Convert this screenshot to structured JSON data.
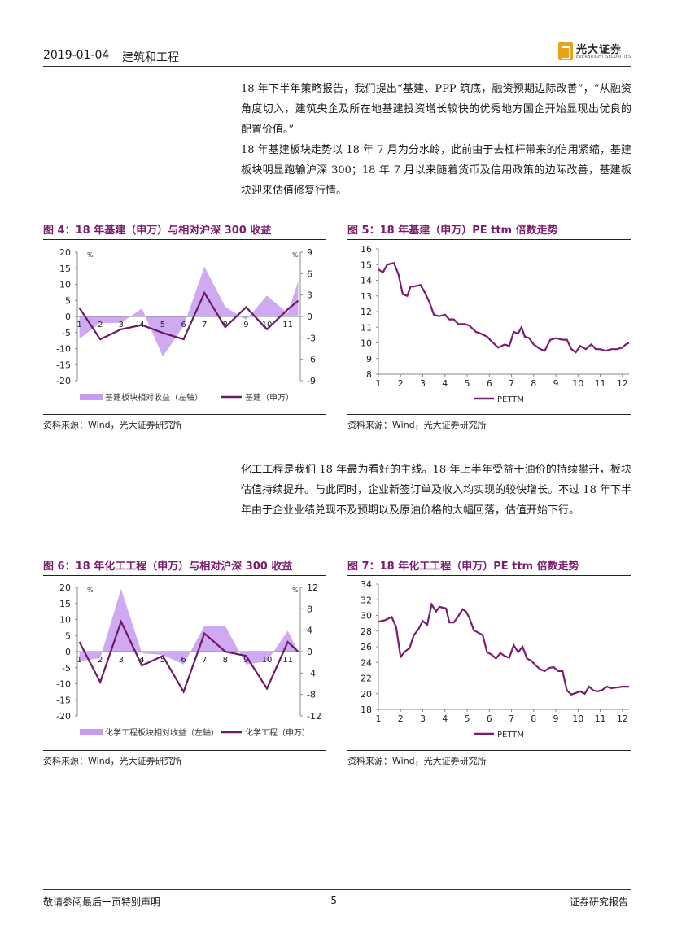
{
  "header": {
    "date": "2019-01-04",
    "title": "建筑和工程",
    "logo_cn": "光大证券",
    "logo_en": "EVERBRIGHT SECURITIES"
  },
  "paragraphs": [
    "18 年下半年策略报告，我们提出“基建、PPP 筑底，融资预期边际改善”，“从融资角度切入，建筑央企及所在地基建投资增长较快的优秀地方国企开始显现出优良的配置价值。”",
    "18 年基建板块走势以 18 年 7 月为分水岭，此前由于去杠杆带来的信用紧缩，基建板块明显跑输沪深 300；18 年 7 月以来随着货币及信用政策的边际改善，基建板块迎来估值修复行情。",
    "化工工程是我们 18 年最为看好的主线。18 年上半年受益于油价的持续攀升，板块估值持续提升。与此同时，企业新签订单及收入均实现的较快增长。不过 18 年下半年由于企业业绩兑现不及预期以及原油价格的大幅回落，估值开始下行。"
  ],
  "figures": {
    "fig4": {
      "title": "图 4：18 年基建（申万）与相对沪深 300 收益",
      "source": "资料来源：Wind，光大证券研究所"
    },
    "fig5": {
      "title": "图 5：18 年基建（申万）PE ttm 倍数走势",
      "source": "资料来源：Wind，光大证券研究所"
    },
    "fig6": {
      "title": "图 6：18 年化工工程（申万）与相对沪深 300 收益",
      "source": "资料来源：Wind，光大证券研究所"
    },
    "fig7": {
      "title": "图 7：18 年化工工程（申万）PE ttm 倍数走势",
      "source": "资料来源：Wind，光大证券研究所"
    }
  },
  "footer": {
    "left": "敬请参阅最后一页特别声明",
    "center": "-5-",
    "right": "证券研究报告"
  },
  "chart_data": [
    {
      "id": "fig4",
      "type": "area+line",
      "title": "图 4：18 年基建（申万）与相对沪深 300 收益",
      "x": [
        "1",
        "2",
        "3",
        "4",
        "5",
        "6",
        "7",
        "8",
        "9",
        "10",
        "11"
      ],
      "y_left_ticks": [
        20,
        15,
        10,
        5,
        0,
        -5,
        -10,
        -15,
        -20
      ],
      "y_right_ticks": [
        9,
        6,
        3,
        0,
        -3,
        -6,
        -9
      ],
      "y_left_unit": "%",
      "y_right_unit": "%",
      "ylim_left": [
        -20,
        20
      ],
      "ylim_right": [
        -9,
        9
      ],
      "series": [
        {
          "name": "基建板块相对收益（左轴）",
          "axis": "left",
          "kind": "area",
          "color": "#c79bf0",
          "x": [
            1,
            2,
            3,
            4,
            5,
            6,
            7,
            8,
            9,
            10,
            11,
            11.5
          ],
          "values": [
            -7,
            -2,
            -2,
            2.5,
            -12.5,
            -3,
            15.5,
            3,
            -1,
            6.5,
            1,
            11
          ]
        },
        {
          "name": "基建（申万）",
          "axis": "right",
          "kind": "line",
          "color": "#6b1a65",
          "x": [
            1,
            2,
            3,
            4,
            5,
            6,
            7,
            8,
            9,
            10,
            11,
            11.5
          ],
          "values": [
            1.2,
            -3.2,
            -1.8,
            -1.2,
            -2.3,
            -3.2,
            3.3,
            -1.5,
            1.3,
            -1.8,
            1,
            2.2
          ]
        }
      ],
      "legend": [
        "基建板块相对收益（左轴）",
        "基建（申万）"
      ]
    },
    {
      "id": "fig5",
      "type": "line",
      "title": "图 5：18 年基建（申万）PE ttm 倍数走势",
      "x_ticks": [
        "1",
        "2",
        "3",
        "4",
        "5",
        "6",
        "7",
        "8",
        "9",
        "10",
        "11",
        "12"
      ],
      "y_ticks": [
        16,
        15,
        14,
        13,
        12,
        11,
        10,
        9,
        8
      ],
      "ylim": [
        8,
        16
      ],
      "xlim": [
        1,
        12.3
      ],
      "series": [
        {
          "name": "PETTM",
          "color": "#7b1c70",
          "x": [
            1,
            1.2,
            1.4,
            1.7,
            1.9,
            2.1,
            2.3,
            2.45,
            2.6,
            2.9,
            3.1,
            3.3,
            3.5,
            3.75,
            4.0,
            4.2,
            4.4,
            4.6,
            4.9,
            5.1,
            5.4,
            5.6,
            5.9,
            6.1,
            6.4,
            6.7,
            6.9,
            7.1,
            7.3,
            7.45,
            7.6,
            7.8,
            8.0,
            8.3,
            8.5,
            8.75,
            9.0,
            9.3,
            9.5,
            9.7,
            9.9,
            10.1,
            10.35,
            10.6,
            10.8,
            11.0,
            11.25,
            11.5,
            11.75,
            12.0,
            12.15,
            12.3
          ],
          "values": [
            14.7,
            14.5,
            15.0,
            15.1,
            14.4,
            13.1,
            13.0,
            13.6,
            13.6,
            13.7,
            13.2,
            12.6,
            11.8,
            11.7,
            11.8,
            11.5,
            11.5,
            11.2,
            11.2,
            11.1,
            10.7,
            10.6,
            10.4,
            10.1,
            9.7,
            9.9,
            9.8,
            10.7,
            10.6,
            11.0,
            10.4,
            10.3,
            9.9,
            9.6,
            9.5,
            10.2,
            10.3,
            10.2,
            10.2,
            9.6,
            9.4,
            9.8,
            9.6,
            9.9,
            9.6,
            9.6,
            9.5,
            9.6,
            9.6,
            9.7,
            9.9,
            10.0
          ]
        }
      ],
      "legend": [
        "PETTM"
      ]
    },
    {
      "id": "fig6",
      "type": "area+line",
      "title": "图 6：18 年化工工程（申万）与相对沪深 300 收益",
      "x": [
        "1",
        "2",
        "3",
        "4",
        "5",
        "6",
        "7",
        "8",
        "9",
        "10",
        "11"
      ],
      "y_left_ticks": [
        20,
        15,
        10,
        5,
        0,
        -5,
        -10,
        -15,
        -20
      ],
      "y_right_ticks": [
        12,
        8,
        4,
        0,
        -4,
        -8,
        -12
      ],
      "y_left_unit": "%",
      "y_right_unit": "%",
      "ylim_left": [
        -20,
        20
      ],
      "ylim_right": [
        -12,
        12
      ],
      "series": [
        {
          "name": "化学工程板块相对收益（左轴）",
          "axis": "left",
          "kind": "area",
          "color": "#c79bf0",
          "x": [
            1,
            2,
            3,
            4,
            5,
            6,
            7,
            8,
            9,
            10,
            11,
            11.5
          ],
          "values": [
            -3,
            -2,
            19.5,
            -0.5,
            -1,
            -4,
            8,
            8,
            -4,
            -3,
            6.5,
            0
          ]
        },
        {
          "name": "化学工程（申万）",
          "axis": "right",
          "kind": "line",
          "color": "#6b1a65",
          "x": [
            1,
            2,
            3,
            4,
            5,
            6,
            7,
            8,
            9,
            10,
            11,
            11.5
          ],
          "values": [
            1.8,
            -5.7,
            5.6,
            -2.6,
            -0.8,
            -7.5,
            3.4,
            0,
            -0.8,
            -6.9,
            1.8,
            0
          ]
        }
      ],
      "legend": [
        "化学工程板块相对收益（左轴）",
        "化学工程（申万）"
      ]
    },
    {
      "id": "fig7",
      "type": "line",
      "title": "图 7：18 年化工工程（申万）PE ttm 倍数走势",
      "x_ticks": [
        "1",
        "2",
        "3",
        "4",
        "5",
        "6",
        "7",
        "8",
        "9",
        "10",
        "11",
        "12"
      ],
      "y_ticks": [
        34,
        32,
        30,
        28,
        26,
        24,
        22,
        20,
        18
      ],
      "ylim": [
        18,
        34
      ],
      "xlim": [
        1,
        12.3
      ],
      "series": [
        {
          "name": "PETTM",
          "color": "#7b1c70",
          "x": [
            1,
            1.3,
            1.6,
            1.8,
            2.0,
            2.2,
            2.4,
            2.6,
            2.8,
            3.0,
            3.2,
            3.4,
            3.6,
            3.75,
            3.9,
            4.05,
            4.2,
            4.4,
            4.6,
            4.8,
            4.95,
            5.1,
            5.3,
            5.5,
            5.7,
            5.9,
            6.1,
            6.3,
            6.5,
            6.7,
            6.9,
            7.1,
            7.3,
            7.5,
            7.7,
            7.9,
            8.1,
            8.3,
            8.5,
            8.7,
            8.9,
            9.1,
            9.3,
            9.5,
            9.7,
            9.9,
            10.1,
            10.3,
            10.5,
            10.7,
            10.9,
            11.1,
            11.3,
            11.5,
            11.75,
            12.0,
            12.15,
            12.3
          ],
          "values": [
            29.2,
            29.4,
            29.8,
            28.5,
            24.7,
            25.4,
            25.8,
            27.5,
            28.2,
            29.3,
            28.8,
            31.4,
            30.5,
            31.1,
            31.0,
            30.9,
            29.1,
            29.1,
            29.9,
            30.8,
            30.5,
            29.7,
            28.1,
            27.8,
            27.5,
            25.3,
            25.0,
            24.5,
            25.2,
            24.8,
            24.6,
            26.2,
            25.3,
            26.0,
            24.5,
            24.2,
            23.6,
            23.1,
            22.9,
            23.3,
            23.4,
            22.9,
            22.9,
            20.4,
            19.9,
            20.1,
            20.3,
            20.0,
            20.9,
            20.4,
            20.3,
            20.5,
            20.9,
            20.7,
            20.8,
            20.9,
            20.9,
            20.9
          ]
        }
      ],
      "legend": [
        "PETTM"
      ]
    }
  ]
}
